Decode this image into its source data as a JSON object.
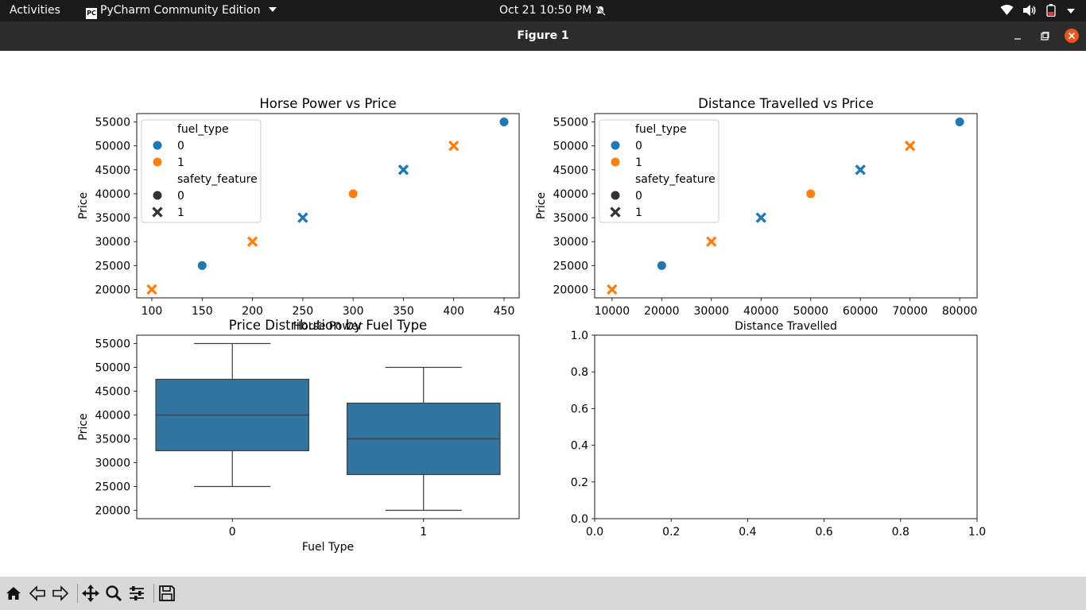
{
  "topbar": {
    "activities": "Activities",
    "app_menu": "PyCharm Community Edition",
    "clock": "Oct 21  10:50 PM"
  },
  "window": {
    "title": "Figure 1"
  },
  "colors": {
    "series0": "#1f77b4",
    "series1": "#ff7f0e",
    "box": "#3274a1"
  },
  "chart_data": [
    {
      "type": "scatter",
      "title": "Horse Power vs Price",
      "xlabel": "Horse Power",
      "ylabel": "Price",
      "xlim": [
        85,
        465
      ],
      "ylim": [
        18250,
        56750
      ],
      "xticks": [
        100,
        150,
        200,
        250,
        300,
        350,
        400,
        450
      ],
      "yticks": [
        20000,
        25000,
        30000,
        35000,
        40000,
        45000,
        50000,
        55000
      ],
      "points": [
        {
          "x": 100,
          "y": 20000,
          "fuel_type": 1,
          "safety_feature": 1
        },
        {
          "x": 150,
          "y": 25000,
          "fuel_type": 0,
          "safety_feature": 0
        },
        {
          "x": 200,
          "y": 30000,
          "fuel_type": 1,
          "safety_feature": 1
        },
        {
          "x": 250,
          "y": 35000,
          "fuel_type": 0,
          "safety_feature": 1
        },
        {
          "x": 300,
          "y": 40000,
          "fuel_type": 1,
          "safety_feature": 0
        },
        {
          "x": 350,
          "y": 45000,
          "fuel_type": 0,
          "safety_feature": 1
        },
        {
          "x": 400,
          "y": 50000,
          "fuel_type": 1,
          "safety_feature": 1
        },
        {
          "x": 450,
          "y": 55000,
          "fuel_type": 0,
          "safety_feature": 0
        }
      ],
      "legend": {
        "placement": "upper-left",
        "hue_title": "fuel_type",
        "hue_entries": [
          "0",
          "1"
        ],
        "style_title": "safety_feature",
        "style_entries": [
          "0",
          "1"
        ]
      }
    },
    {
      "type": "scatter",
      "title": "Distance Travelled vs Price",
      "xlabel": "Distance Travelled",
      "ylabel": "Price",
      "xlim": [
        6500,
        83500
      ],
      "ylim": [
        18250,
        56750
      ],
      "xticks": [
        10000,
        20000,
        30000,
        40000,
        50000,
        60000,
        70000,
        80000
      ],
      "yticks": [
        20000,
        25000,
        30000,
        35000,
        40000,
        45000,
        50000,
        55000
      ],
      "points": [
        {
          "x": 10000,
          "y": 20000,
          "fuel_type": 1,
          "safety_feature": 1
        },
        {
          "x": 20000,
          "y": 25000,
          "fuel_type": 0,
          "safety_feature": 0
        },
        {
          "x": 30000,
          "y": 30000,
          "fuel_type": 1,
          "safety_feature": 1
        },
        {
          "x": 40000,
          "y": 35000,
          "fuel_type": 0,
          "safety_feature": 1
        },
        {
          "x": 50000,
          "y": 40000,
          "fuel_type": 1,
          "safety_feature": 0
        },
        {
          "x": 60000,
          "y": 45000,
          "fuel_type": 0,
          "safety_feature": 1
        },
        {
          "x": 70000,
          "y": 50000,
          "fuel_type": 1,
          "safety_feature": 1
        },
        {
          "x": 80000,
          "y": 55000,
          "fuel_type": 0,
          "safety_feature": 0
        }
      ],
      "legend": {
        "placement": "upper-left",
        "hue_title": "fuel_type",
        "hue_entries": [
          "0",
          "1"
        ],
        "style_title": "safety_feature",
        "style_entries": [
          "0",
          "1"
        ]
      }
    },
    {
      "type": "box",
      "title": "Price Distribution by Fuel Type",
      "xlabel": "Fuel Type",
      "ylabel": "Price",
      "ylim": [
        18250,
        56750
      ],
      "yticks": [
        20000,
        25000,
        30000,
        35000,
        40000,
        45000,
        50000,
        55000
      ],
      "categories": [
        "0",
        "1"
      ],
      "boxes": [
        {
          "min": 25000,
          "q1": 32500,
          "median": 40000,
          "q3": 47500,
          "max": 55000
        },
        {
          "min": 20000,
          "q1": 27500,
          "median": 35000,
          "q3": 42500,
          "max": 50000
        }
      ]
    },
    {
      "type": "empty",
      "xlim": [
        0,
        1
      ],
      "ylim": [
        0,
        1
      ],
      "xticks": [
        "0.0",
        "0.2",
        "0.4",
        "0.6",
        "0.8",
        "1.0"
      ],
      "yticks": [
        "0.0",
        "0.2",
        "0.4",
        "0.6",
        "0.8",
        "1.0"
      ]
    }
  ]
}
